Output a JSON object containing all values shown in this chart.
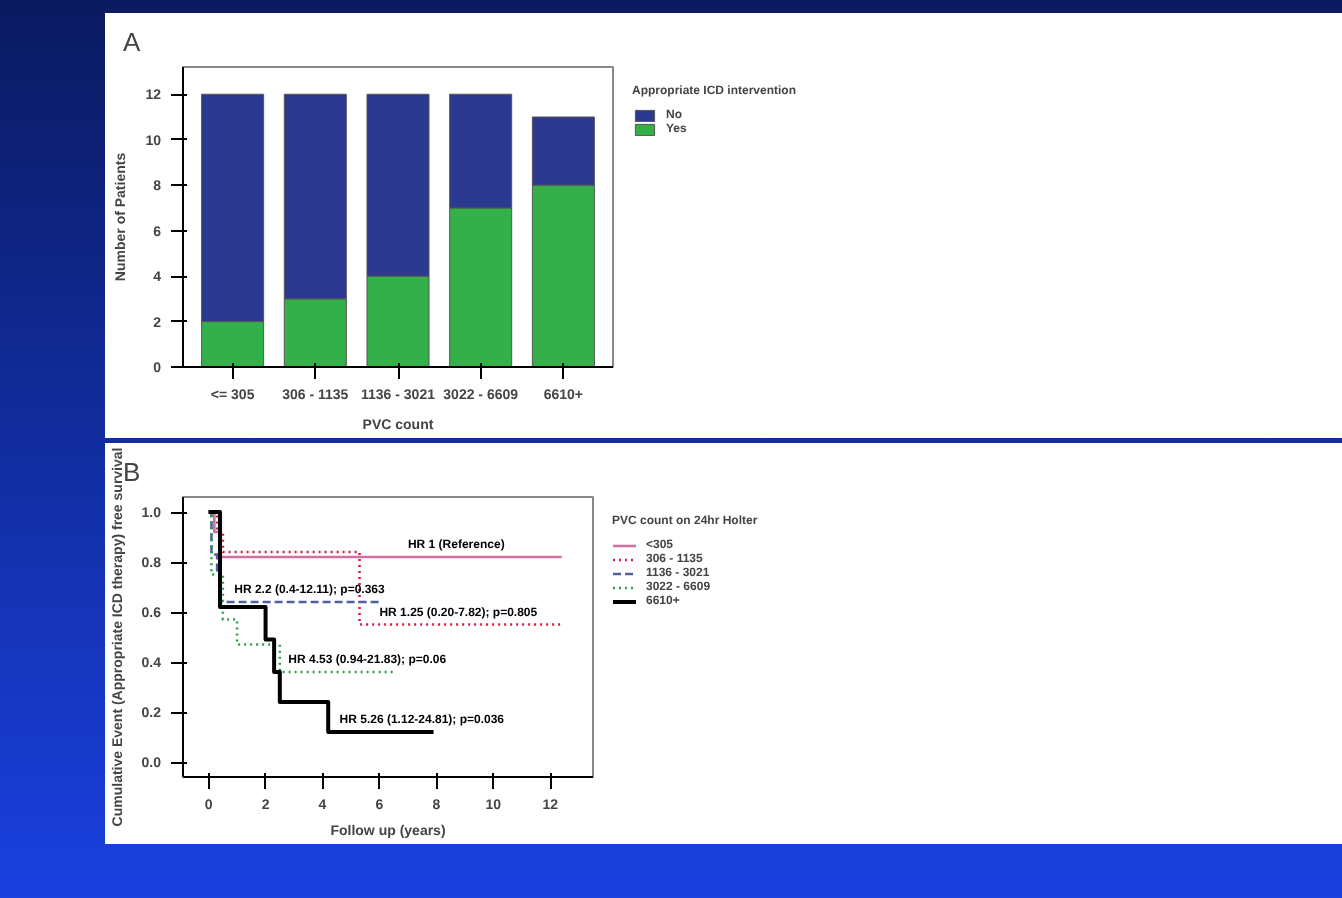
{
  "chart_data": [
    {
      "type": "bar",
      "stacked": true,
      "annotations": [
        "A"
      ],
      "xlabel": "PVC count",
      "ylabel": "Number of Patients",
      "legend_title": "Appropriate ICD intervention",
      "legend": "right",
      "categories": [
        "<= 305",
        "306 - 1135",
        "1136 - 3021",
        "3022 - 6609",
        "6610+"
      ],
      "ylim": [
        0,
        13.2
      ],
      "yticks": [
        0,
        2,
        4,
        6,
        8,
        10,
        12
      ],
      "grid": false,
      "series": [
        {
          "name": "Yes",
          "color": "#33b04a",
          "values": [
            2,
            3,
            4,
            7,
            8
          ]
        },
        {
          "name": "No",
          "color": "#2b3990",
          "values": [
            10,
            9,
            8,
            5,
            3
          ]
        }
      ]
    },
    {
      "type": "step",
      "xlabel": "Follow up (years)",
      "ylabel": "Cumulative Event (Appropriate ICD therapy) free survival",
      "legend_title": "PVC count on 24hr Holter",
      "legend": "right",
      "xlim": [
        -0.9,
        13.5
      ],
      "xticks": [
        0,
        2,
        4,
        6,
        8,
        10,
        12
      ],
      "ylim": [
        -0.06,
        1.06
      ],
      "yticks": [
        {
          "value": 0,
          "label": "0.0"
        },
        0.2,
        0.4,
        0.6,
        0.8,
        {
          "value": 1,
          "label": "1.0"
        }
      ],
      "grid": false,
      "annotations": [
        "B",
        {
          "text": "HR 1 (Reference)",
          "x": 7.0,
          "y": 0.84
        },
        {
          "text": "HR 2.2 (0.4-12.11); p=0.363",
          "x": 0.9,
          "y": 0.66
        },
        {
          "text": "HR 1.25 (0.20-7.82); p=0.805",
          "x": 6.0,
          "y": 0.57
        },
        {
          "text": "HR 4.53 (0.94-21.83); p=0.06",
          "x": 2.8,
          "y": 0.38
        },
        {
          "text": "HR 5.26 (1.12-24.81); p=0.036",
          "x": 4.6,
          "y": 0.14
        }
      ],
      "series": [
        {
          "name": "<305",
          "color": "#d070a0",
          "line_style": "solid",
          "x": [
            0,
            0.2,
            0.4,
            12.4
          ],
          "values": [
            1.0,
            0.92,
            0.82,
            0.82
          ]
        },
        {
          "name": "306 - 1135",
          "color": "#d02040",
          "line_style": "dotted",
          "x": [
            0,
            0.3,
            0.5,
            5.3,
            12.4
          ],
          "values": [
            1.0,
            0.92,
            0.84,
            0.55,
            0.55
          ]
        },
        {
          "name": "1136 - 3021",
          "color": "#5060a0",
          "line_style": "dashed",
          "x": [
            0,
            0.1,
            0.3,
            0.4,
            6.0
          ],
          "values": [
            1.0,
            0.83,
            0.75,
            0.64,
            0.64
          ]
        },
        {
          "name": "3022 - 6609",
          "color": "#30a050",
          "line_style": "dotted",
          "x": [
            0,
            0.1,
            0.5,
            1.0,
            2.5,
            6.5
          ],
          "values": [
            1.0,
            0.75,
            0.57,
            0.47,
            0.36,
            0.36
          ]
        },
        {
          "name": "6610+",
          "color": "#000000",
          "line_style": "solid",
          "x": [
            0,
            0.4,
            2.0,
            2.3,
            2.5,
            4.2,
            7.9
          ],
          "values": [
            1.0,
            0.62,
            0.49,
            0.36,
            0.24,
            0.12,
            0.12
          ]
        }
      ]
    }
  ]
}
